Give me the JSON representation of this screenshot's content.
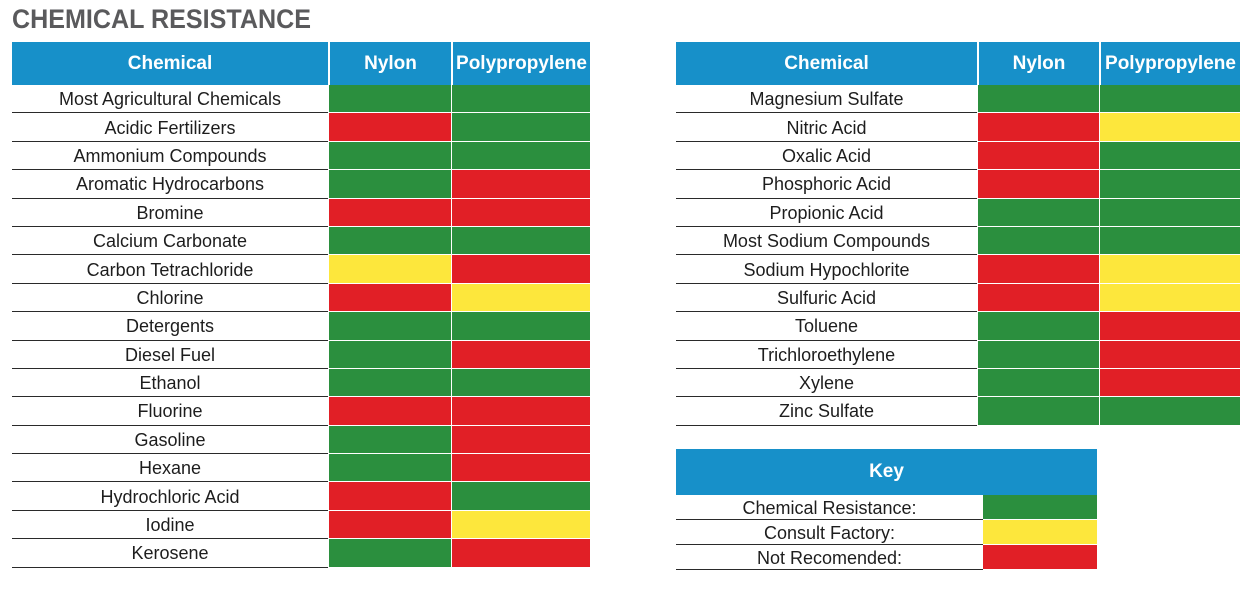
{
  "title": "CHEMICAL RESISTANCE",
  "colors": {
    "green": "#2b8f3e",
    "yellow": "#fde73c",
    "red": "#e11f26",
    "header": "#1790c9"
  },
  "left_table": {
    "headers": [
      "Chemical",
      "Nylon",
      "Polypropylene"
    ],
    "rows": [
      {
        "name": "Most Agricultural Chemicals",
        "nylon": "green",
        "pp": "green"
      },
      {
        "name": "Acidic Fertilizers",
        "nylon": "red",
        "pp": "green"
      },
      {
        "name": "Ammonium Compounds",
        "nylon": "green",
        "pp": "green"
      },
      {
        "name": "Aromatic Hydrocarbons",
        "nylon": "green",
        "pp": "red"
      },
      {
        "name": "Bromine",
        "nylon": "red",
        "pp": "red"
      },
      {
        "name": "Calcium Carbonate",
        "nylon": "green",
        "pp": "green"
      },
      {
        "name": "Carbon Tetrachloride",
        "nylon": "yellow",
        "pp": "red"
      },
      {
        "name": "Chlorine",
        "nylon": "red",
        "pp": "yellow"
      },
      {
        "name": "Detergents",
        "nylon": "green",
        "pp": "green"
      },
      {
        "name": "Diesel Fuel",
        "nylon": "green",
        "pp": "red"
      },
      {
        "name": "Ethanol",
        "nylon": "green",
        "pp": "green"
      },
      {
        "name": "Fluorine",
        "nylon": "red",
        "pp": "red"
      },
      {
        "name": "Gasoline",
        "nylon": "green",
        "pp": "red"
      },
      {
        "name": "Hexane",
        "nylon": "green",
        "pp": "red"
      },
      {
        "name": "Hydrochloric Acid",
        "nylon": "red",
        "pp": "green"
      },
      {
        "name": "Iodine",
        "nylon": "red",
        "pp": "yellow"
      },
      {
        "name": "Kerosene",
        "nylon": "green",
        "pp": "red"
      }
    ]
  },
  "right_table": {
    "headers": [
      "Chemical",
      "Nylon",
      "Polypropylene"
    ],
    "rows": [
      {
        "name": "Magnesium Sulfate",
        "nylon": "green",
        "pp": "green"
      },
      {
        "name": "Nitric Acid",
        "nylon": "red",
        "pp": "yellow"
      },
      {
        "name": "Oxalic Acid",
        "nylon": "red",
        "pp": "green"
      },
      {
        "name": "Phosphoric Acid",
        "nylon": "red",
        "pp": "green"
      },
      {
        "name": "Propionic Acid",
        "nylon": "green",
        "pp": "green"
      },
      {
        "name": "Most Sodium Compounds",
        "nylon": "green",
        "pp": "green"
      },
      {
        "name": "Sodium Hypochlorite",
        "nylon": "red",
        "pp": "yellow"
      },
      {
        "name": "Sulfuric Acid",
        "nylon": "red",
        "pp": "yellow"
      },
      {
        "name": "Toluene",
        "nylon": "green",
        "pp": "red"
      },
      {
        "name": "Trichloroethylene",
        "nylon": "green",
        "pp": "red"
      },
      {
        "name": "Xylene",
        "nylon": "green",
        "pp": "red"
      },
      {
        "name": "Zinc Sulfate",
        "nylon": "green",
        "pp": "green"
      }
    ]
  },
  "key": {
    "title": "Key",
    "items": [
      {
        "label": "Chemical Resistance:",
        "color": "green"
      },
      {
        "label": "Consult Factory:",
        "color": "yellow"
      },
      {
        "label": "Not Recomended:",
        "color": "red"
      }
    ]
  }
}
